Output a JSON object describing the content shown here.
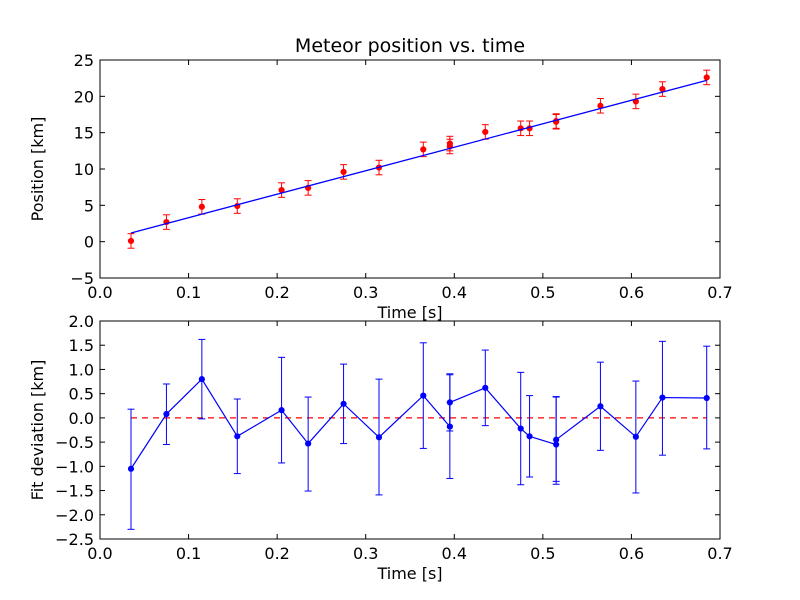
{
  "chart_data": [
    {
      "type": "scatter",
      "title": "Meteor position vs. time",
      "xlabel": "Time [s]",
      "ylabel": "Position [km]",
      "xlim": [
        0.0,
        0.7
      ],
      "ylim": [
        -5,
        25
      ],
      "xticks": [
        "0.0",
        "0.1",
        "0.2",
        "0.3",
        "0.4",
        "0.5",
        "0.6",
        "0.7"
      ],
      "yticks": [
        "−5",
        "0",
        "5",
        "10",
        "15",
        "20",
        "25"
      ],
      "grid": false,
      "series": [
        {
          "kind": "errorbar-points",
          "color": "#ff0000",
          "x": [
            0.035,
            0.075,
            0.115,
            0.155,
            0.205,
            0.235,
            0.275,
            0.315,
            0.365,
            0.395,
            0.395,
            0.435,
            0.475,
            0.485,
            0.515,
            0.515,
            0.565,
            0.605,
            0.635,
            0.685
          ],
          "y": [
            0.1,
            2.7,
            4.8,
            4.9,
            7.1,
            7.4,
            9.6,
            10.2,
            12.7,
            13.5,
            13.1,
            15.1,
            15.6,
            15.6,
            16.6,
            16.5,
            18.7,
            19.3,
            21.0,
            22.6
          ],
          "yerr": 1.0
        },
        {
          "kind": "fit-line",
          "color": "#0000ff",
          "x": [
            0.035,
            0.685
          ],
          "y": [
            1.2,
            22.2
          ]
        }
      ]
    },
    {
      "type": "line",
      "title": "",
      "xlabel": "Time [s]",
      "ylabel": "Fit deviation [km]",
      "xlim": [
        0.0,
        0.7
      ],
      "ylim": [
        -2.5,
        2.0
      ],
      "xticks": [
        "0.0",
        "0.1",
        "0.2",
        "0.3",
        "0.4",
        "0.5",
        "0.6",
        "0.7"
      ],
      "yticks": [
        "−2.5",
        "−2.0",
        "−1.5",
        "−1.0",
        "−0.5",
        "0.0",
        "0.5",
        "1.0",
        "1.5",
        "2.0"
      ],
      "grid": false,
      "reference_line": {
        "y": 0.0,
        "style": "dashed",
        "color": "#ff0000"
      },
      "series": [
        {
          "kind": "errorbar-line",
          "color": "#0000ff",
          "x": [
            0.035,
            0.075,
            0.115,
            0.155,
            0.205,
            0.235,
            0.275,
            0.315,
            0.365,
            0.395,
            0.395,
            0.435,
            0.475,
            0.485,
            0.515,
            0.515,
            0.565,
            0.605,
            0.635,
            0.685
          ],
          "y": [
            -1.05,
            0.08,
            0.8,
            -0.38,
            0.16,
            -0.53,
            0.29,
            -0.4,
            0.46,
            -0.18,
            0.32,
            0.62,
            -0.22,
            -0.38,
            -0.55,
            -0.45,
            0.24,
            -0.39,
            0.42,
            0.41
          ],
          "yerr_low": [
            1.25,
            0.63,
            0.82,
            0.77,
            1.09,
            0.98,
            0.82,
            1.19,
            1.09,
            1.07,
            0.59,
            0.78,
            1.16,
            0.84,
            0.76,
            0.92,
            0.91,
            1.16,
            1.19,
            1.05
          ],
          "yerr_high": [
            1.23,
            0.62,
            0.82,
            0.77,
            1.09,
            0.96,
            0.82,
            1.2,
            1.09,
            1.07,
            0.59,
            0.78,
            1.16,
            0.84,
            0.98,
            0.89,
            0.91,
            1.15,
            1.16,
            1.07
          ]
        }
      ]
    }
  ]
}
